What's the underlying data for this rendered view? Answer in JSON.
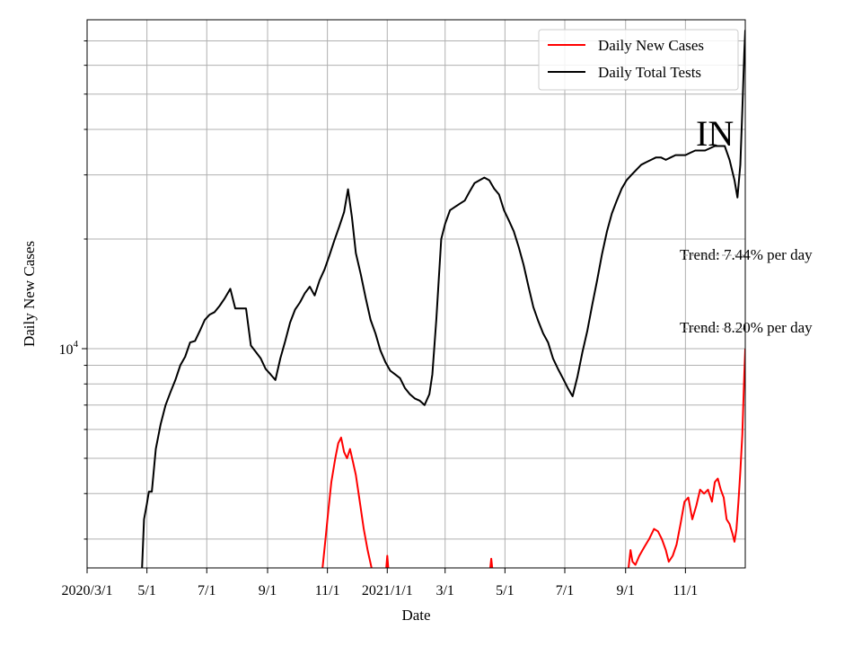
{
  "chart_data": {
    "type": "line",
    "xlabel": "Date",
    "ylabel": "Daily New Cases",
    "x_start": "2020-03-01",
    "x_end": "2022-01-01",
    "yscale": "log",
    "ylim": [
      2500,
      80000
    ],
    "grid": true,
    "legend_position": "top-right",
    "x_ticks": [
      {
        "date": "2020-03-01",
        "label": "2020/3/1"
      },
      {
        "date": "2020-05-01",
        "label": "5/1"
      },
      {
        "date": "2020-07-01",
        "label": "7/1"
      },
      {
        "date": "2020-09-01",
        "label": "9/1"
      },
      {
        "date": "2020-11-01",
        "label": "11/1"
      },
      {
        "date": "2021-01-01",
        "label": "2021/1/1"
      },
      {
        "date": "2021-03-01",
        "label": "3/1"
      },
      {
        "date": "2021-05-01",
        "label": "5/1"
      },
      {
        "date": "2021-07-01",
        "label": "7/1"
      },
      {
        "date": "2021-09-01",
        "label": "9/1"
      },
      {
        "date": "2021-11-01",
        "label": "11/1"
      }
    ],
    "y_major_tick": {
      "value": 10000,
      "label_base": "10",
      "label_exp": "4"
    },
    "series": [
      {
        "name": "Daily New Cases",
        "color": "#ff0000",
        "segments": [
          [
            [
              "2020-10-27",
              2500
            ],
            [
              "2020-10-30",
              3000
            ],
            [
              "2020-11-02",
              3600
            ],
            [
              "2020-11-05",
              4300
            ],
            [
              "2020-11-09",
              5000
            ],
            [
              "2020-11-12",
              5500
            ],
            [
              "2020-11-15",
              5700
            ],
            [
              "2020-11-18",
              5200
            ],
            [
              "2020-11-21",
              5000
            ],
            [
              "2020-11-24",
              5300
            ],
            [
              "2020-11-27",
              4900
            ],
            [
              "2020-11-30",
              4500
            ],
            [
              "2020-12-04",
              3800
            ],
            [
              "2020-12-08",
              3200
            ],
            [
              "2020-12-12",
              2800
            ],
            [
              "2020-12-16",
              2500
            ]
          ],
          [
            [
              "2020-12-31",
              2500
            ],
            [
              "2021-01-01",
              2700
            ],
            [
              "2021-01-02",
              2500
            ]
          ],
          [
            [
              "2021-04-16",
              2500
            ],
            [
              "2021-04-17",
              2650
            ],
            [
              "2021-04-18",
              2500
            ]
          ],
          [
            [
              "2021-09-04",
              2500
            ],
            [
              "2021-09-06",
              2800
            ],
            [
              "2021-09-08",
              2600
            ],
            [
              "2021-09-11",
              2550
            ],
            [
              "2021-09-15",
              2700
            ],
            [
              "2021-09-20",
              2850
            ],
            [
              "2021-09-25",
              3000
            ],
            [
              "2021-09-30",
              3200
            ],
            [
              "2021-10-04",
              3150
            ],
            [
              "2021-10-08",
              3000
            ],
            [
              "2021-10-12",
              2800
            ],
            [
              "2021-10-15",
              2600
            ],
            [
              "2021-10-19",
              2700
            ],
            [
              "2021-10-23",
              2900
            ],
            [
              "2021-10-27",
              3300
            ],
            [
              "2021-10-31",
              3800
            ],
            [
              "2021-11-04",
              3900
            ],
            [
              "2021-11-08",
              3400
            ],
            [
              "2021-11-12",
              3700
            ],
            [
              "2021-11-16",
              4100
            ],
            [
              "2021-11-20",
              4000
            ],
            [
              "2021-11-24",
              4100
            ],
            [
              "2021-11-28",
              3800
            ],
            [
              "2021-12-01",
              4300
            ],
            [
              "2021-12-04",
              4400
            ],
            [
              "2021-12-07",
              4100
            ],
            [
              "2021-12-10",
              3900
            ],
            [
              "2021-12-13",
              3400
            ],
            [
              "2021-12-16",
              3300
            ],
            [
              "2021-12-19",
              3100
            ],
            [
              "2021-12-21",
              2950
            ],
            [
              "2021-12-23",
              3200
            ],
            [
              "2021-12-25",
              3800
            ],
            [
              "2021-12-27",
              4600
            ],
            [
              "2021-12-29",
              5800
            ],
            [
              "2021-12-31",
              8500
            ],
            [
              "2022-01-01",
              10000
            ]
          ]
        ]
      },
      {
        "name": "Daily Total Tests",
        "color": "#000000",
        "segments": [
          [
            [
              "2020-04-26",
              2500
            ],
            [
              "2020-04-28",
              3400
            ],
            [
              "2020-05-01",
              3750
            ],
            [
              "2020-05-03",
              4050
            ],
            [
              "2020-05-06",
              4050
            ],
            [
              "2020-05-10",
              5300
            ],
            [
              "2020-05-15",
              6200
            ],
            [
              "2020-05-20",
              7000
            ],
            [
              "2020-05-25",
              7600
            ],
            [
              "2020-05-30",
              8200
            ],
            [
              "2020-06-04",
              9000
            ],
            [
              "2020-06-09",
              9500
            ],
            [
              "2020-06-14",
              10400
            ],
            [
              "2020-06-19,",
              10500
            ],
            [
              "2020-06-24",
              11200
            ],
            [
              "2020-06-29",
              12000
            ],
            [
              "2020-07-04",
              12400
            ],
            [
              "2020-07-09",
              12600
            ],
            [
              "2020-07-14",
              13100
            ],
            [
              "2020-07-19",
              13700
            ],
            [
              "2020-07-25",
              14600
            ],
            [
              "2020-07-30",
              12900
            ],
            [
              "2020-08-05",
              12900
            ],
            [
              "2020-08-10",
              12900
            ],
            [
              "2020-08-15",
              10200
            ],
            [
              "2020-08-20",
              9800
            ],
            [
              "2020-08-25",
              9400
            ],
            [
              "2020-08-30",
              8800
            ],
            [
              "2020-09-04",
              8500
            ],
            [
              "2020-09-09",
              8200
            ],
            [
              "2020-09-14",
              9400
            ],
            [
              "2020-09-19",
              10500
            ],
            [
              "2020-09-24",
              11800
            ],
            [
              "2020-09-29",
              12800
            ],
            [
              "2020-10-04",
              13400
            ],
            [
              "2020-10-09",
              14200
            ],
            [
              "2020-10-14",
              14800
            ],
            [
              "2020-10-19",
              14000
            ],
            [
              "2020-10-24",
              15400
            ],
            [
              "2020-10-29",
              16500
            ],
            [
              "2020-11-03",
              18000
            ],
            [
              "2020-11-08",
              19800
            ],
            [
              "2020-11-13",
              21600
            ],
            [
              "2020-11-18",
              23700
            ],
            [
              "2020-11-22",
              27400
            ],
            [
              "2020-11-26",
              23000
            ],
            [
              "2020-11-30",
              18300
            ],
            [
              "2020-12-05",
              16000
            ],
            [
              "2020-12-10",
              13800
            ],
            [
              "2020-12-15",
              12000
            ],
            [
              "2020-12-20",
              11000
            ],
            [
              "2020-12-25",
              9900
            ],
            [
              "2020-12-30",
              9200
            ],
            [
              "2021-01-04",
              8700
            ],
            [
              "2021-01-09",
              8500
            ],
            [
              "2021-01-14",
              8300
            ],
            [
              "2021-01-19",
              7800
            ],
            [
              "2021-01-24",
              7500
            ],
            [
              "2021-01-29",
              7300
            ],
            [
              "2021-02-03",
              7200
            ],
            [
              "2021-02-08",
              7000
            ],
            [
              "2021-02-13",
              7500
            ],
            [
              "2021-02-16",
              8500
            ],
            [
              "2021-02-20",
              12000
            ],
            [
              "2021-02-25",
              20000
            ],
            [
              "2021-03-01",
              22000
            ],
            [
              "2021-03-06",
              24000
            ],
            [
              "2021-03-11",
              24500
            ],
            [
              "2021-03-16",
              25000
            ],
            [
              "2021-03-21",
              25500
            ],
            [
              "2021-03-26",
              27000
            ],
            [
              "2021-03-31",
              28500
            ],
            [
              "2021-04-05",
              29000
            ],
            [
              "2021-04-10",
              29500
            ],
            [
              "2021-04-15",
              29000
            ],
            [
              "2021-04-20",
              27500
            ],
            [
              "2021-04-25",
              26500
            ],
            [
              "2021-04-30",
              24000
            ],
            [
              "2021-05-05",
              22500
            ],
            [
              "2021-05-10",
              21000
            ],
            [
              "2021-05-15",
              19000
            ],
            [
              "2021-05-20",
              17000
            ],
            [
              "2021-05-25",
              14800
            ],
            [
              "2021-05-30",
              13000
            ],
            [
              "2021-06-04",
              11900
            ],
            [
              "2021-06-09",
              11000
            ],
            [
              "2021-06-14",
              10400
            ],
            [
              "2021-06-19",
              9400
            ],
            [
              "2021-06-24",
              8800
            ],
            [
              "2021-06-29",
              8300
            ],
            [
              "2021-07-04",
              7800
            ],
            [
              "2021-07-09",
              7400
            ],
            [
              "2021-07-14",
              8400
            ],
            [
              "2021-07-19",
              9800
            ],
            [
              "2021-07-24",
              11200
            ],
            [
              "2021-07-29",
              13200
            ],
            [
              "2021-08-03",
              15400
            ],
            [
              "2021-08-08",
              18200
            ],
            [
              "2021-08-13",
              21000
            ],
            [
              "2021-08-18",
              23500
            ],
            [
              "2021-08-23",
              25500
            ],
            [
              "2021-08-28",
              27500
            ],
            [
              "2021-09-02",
              29000
            ],
            [
              "2021-09-07",
              30000
            ],
            [
              "2021-09-12",
              31000
            ],
            [
              "2021-09-17",
              32000
            ],
            [
              "2021-09-22",
              32500
            ],
            [
              "2021-09-27",
              33000
            ],
            [
              "2021-10-02",
              33500
            ],
            [
              "2021-10-07",
              33500
            ],
            [
              "2021-10-12",
              33000
            ],
            [
              "2021-10-17",
              33500
            ],
            [
              "2021-10-22",
              34000
            ],
            [
              "2021-10-27",
              34000
            ],
            [
              "2021-11-01",
              34000
            ],
            [
              "2021-11-06",
              34500
            ],
            [
              "2021-11-11",
              35000
            ],
            [
              "2021-11-16",
              35000
            ],
            [
              "2021-11-21",
              35000
            ],
            [
              "2021-11-26",
              35500
            ],
            [
              "2021-12-01",
              36000
            ],
            [
              "2021-12-06",
              36000
            ],
            [
              "2021-12-11",
              36000
            ],
            [
              "2021-12-16",
              33000
            ],
            [
              "2021-12-21",
              29000
            ],
            [
              "2021-12-24",
              26000
            ],
            [
              "2021-12-27",
              32000
            ],
            [
              "2021-12-29",
              45000
            ],
            [
              "2021-12-31",
              65000
            ],
            [
              "2022-01-01",
              75000
            ]
          ]
        ]
      }
    ],
    "annotations": [
      {
        "text": "Trend: 7.44% per day"
      },
      {
        "text": "Trend: 8.20% per day"
      },
      {
        "text": "IN"
      }
    ]
  }
}
